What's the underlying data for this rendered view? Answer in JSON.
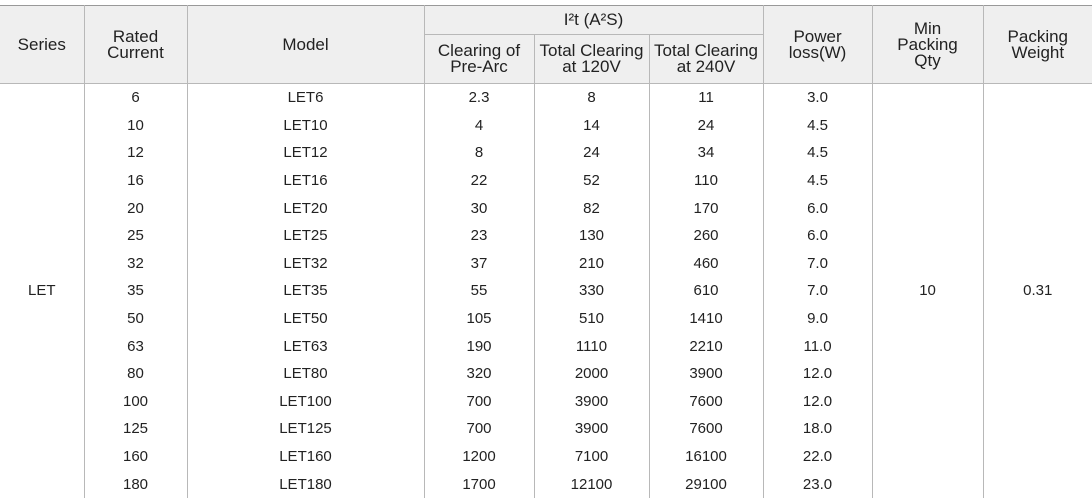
{
  "header": {
    "series": "Series",
    "rated_current": [
      "Rated",
      "Current"
    ],
    "model": "Model",
    "i2t": "I²t (A²S)",
    "clearing_pre_arc": [
      "Clearing of",
      "Pre-Arc"
    ],
    "total_120": [
      "Total Clearing",
      "at 120V"
    ],
    "total_240": [
      "Total Clearing",
      "at 240V"
    ],
    "power_loss": [
      "Power",
      "loss(W)"
    ],
    "min_packing_qty": [
      "Min",
      "Packing",
      "Qty"
    ],
    "packing_weight": [
      "Packing",
      "Weight"
    ]
  },
  "table": {
    "series": "LET",
    "min_packing_qty": "10",
    "packing_weight": "0.31",
    "rows": [
      [
        "6",
        "LET6",
        "2.3",
        "8",
        "11",
        "3.0"
      ],
      [
        "10",
        "LET10",
        "4",
        "14",
        "24",
        "4.5"
      ],
      [
        "12",
        "LET12",
        "8",
        "24",
        "34",
        "4.5"
      ],
      [
        "16",
        "LET16",
        "22",
        "52",
        "110",
        "4.5"
      ],
      [
        "20",
        "LET20",
        "30",
        "82",
        "170",
        "6.0"
      ],
      [
        "25",
        "LET25",
        "23",
        "130",
        "260",
        "6.0"
      ],
      [
        "32",
        "LET32",
        "37",
        "210",
        "460",
        "7.0"
      ],
      [
        "35",
        "LET35",
        "55",
        "330",
        "610",
        "7.0"
      ],
      [
        "50",
        "LET50",
        "105",
        "510",
        "1410",
        "9.0"
      ],
      [
        "63",
        "LET63",
        "190",
        "1110",
        "2210",
        "11.0"
      ],
      [
        "80",
        "LET80",
        "320",
        "2000",
        "3900",
        "12.0"
      ],
      [
        "100",
        "LET100",
        "700",
        "3900",
        "7600",
        "12.0"
      ],
      [
        "125",
        "LET125",
        "700",
        "3900",
        "7600",
        "18.0"
      ],
      [
        "160",
        "LET160",
        "1200",
        "7100",
        "16100",
        "22.0"
      ],
      [
        "180",
        "LET180",
        "1700",
        "12100",
        "29100",
        "23.0"
      ]
    ]
  }
}
